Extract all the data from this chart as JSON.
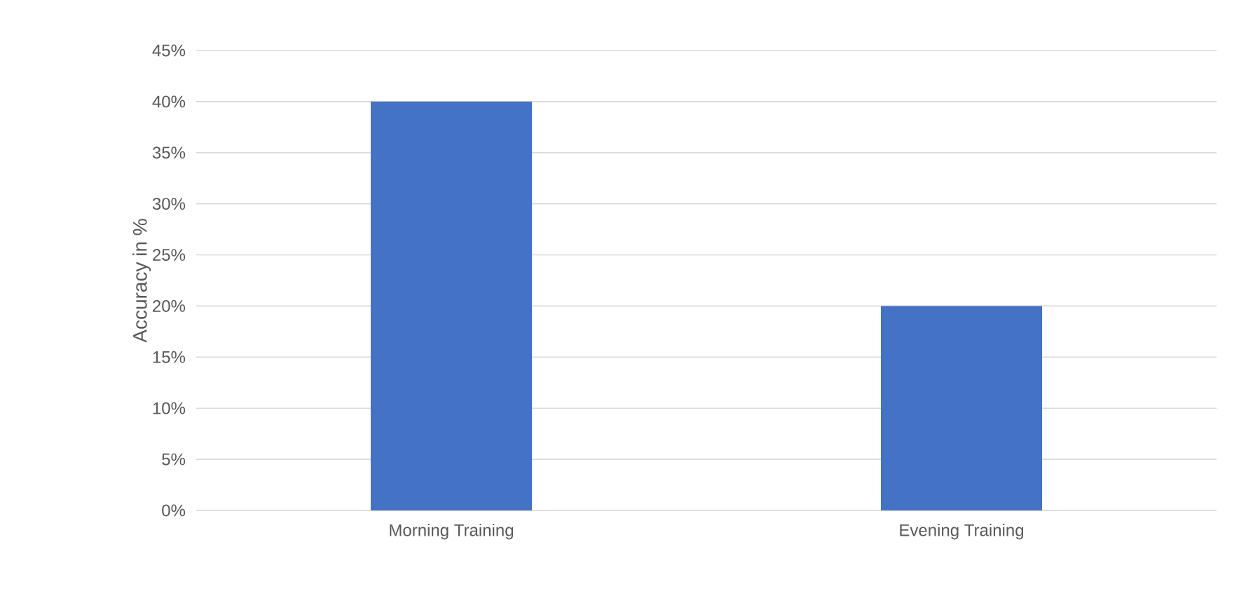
{
  "chart_data": {
    "type": "bar",
    "ylabel": "Accuracy in %",
    "categories": [
      "Morning Training",
      "Evening Training"
    ],
    "values": [
      40,
      20
    ],
    "color": "#4472c4",
    "ylim": [
      0,
      45
    ],
    "yticks": [
      {
        "value": 0,
        "label": "0%"
      },
      {
        "value": 5,
        "label": "5%"
      },
      {
        "value": 10,
        "label": "10%"
      },
      {
        "value": 15,
        "label": "15%"
      },
      {
        "value": 20,
        "label": "20%"
      },
      {
        "value": 25,
        "label": "25%"
      },
      {
        "value": 30,
        "label": "30%"
      },
      {
        "value": 35,
        "label": "35%"
      },
      {
        "value": 40,
        "label": "40%"
      },
      {
        "value": 45,
        "label": "45%"
      }
    ],
    "grid": "y"
  }
}
